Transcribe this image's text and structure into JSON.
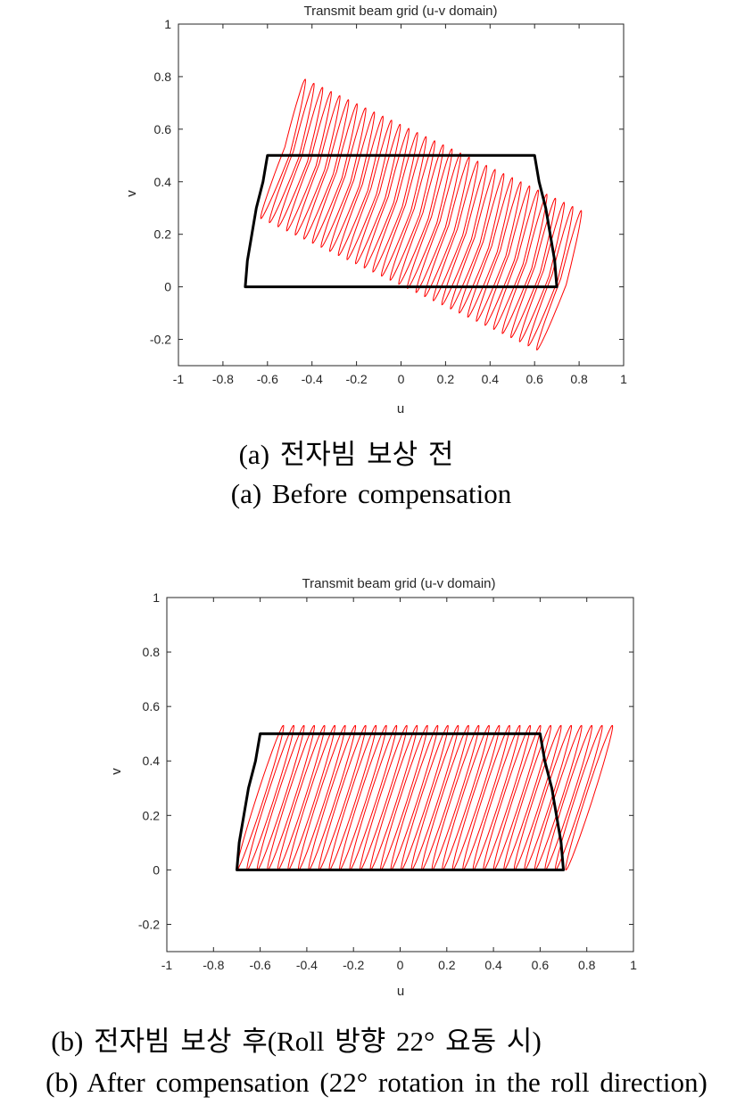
{
  "chart_data": [
    {
      "type": "line",
      "title": "Transmit beam grid (u-v domain)",
      "xlabel": "u",
      "ylabel": "v",
      "xlim": [
        -1,
        1
      ],
      "ylim": [
        -0.3,
        1
      ],
      "xticks": [
        "-1",
        "-0.8",
        "-0.6",
        "-0.4",
        "-0.2",
        "0",
        "0.2",
        "0.4",
        "0.6",
        "0.8",
        "1"
      ],
      "yticks": [
        "-0.2",
        "0",
        "0.2",
        "0.4",
        "0.6",
        "0.8",
        "1"
      ],
      "grid": false,
      "series": [
        {
          "role": "coverage_boundary",
          "color": "#000000",
          "points": [
            [
              -0.7,
              0
            ],
            [
              -0.69,
              0.1
            ],
            [
              -0.67,
              0.2
            ],
            [
              -0.65,
              0.3
            ],
            [
              -0.62,
              0.4
            ],
            [
              -0.6,
              0.5
            ],
            [
              0.6,
              0.5
            ],
            [
              0.62,
              0.4
            ],
            [
              0.65,
              0.3
            ],
            [
              0.67,
              0.2
            ],
            [
              0.69,
              0.1
            ],
            [
              0.7,
              0
            ]
          ]
        },
        {
          "role": "beam_grid",
          "color": "#ff0000",
          "beam_count": 33,
          "first_beam_center": [
            -0.51,
            0.52
          ],
          "last_beam_center": [
            0.73,
            0.02
          ],
          "beam_top_offset": [
            0.08,
            0.27
          ],
          "beam_bottom_offset": [
            -0.12,
            -0.26
          ]
        }
      ]
    },
    {
      "type": "line",
      "title": "Transmit beam grid (u-v domain)",
      "xlabel": "u",
      "ylabel": "v",
      "xlim": [
        -1,
        1
      ],
      "ylim": [
        -0.3,
        1
      ],
      "xticks": [
        "-1",
        "-0.8",
        "-0.6",
        "-0.4",
        "-0.2",
        "0",
        "0.2",
        "0.4",
        "0.6",
        "0.8",
        "1"
      ],
      "yticks": [
        "-0.2",
        "0",
        "0.2",
        "0.4",
        "0.6",
        "0.8",
        "1"
      ],
      "grid": false,
      "series": [
        {
          "role": "coverage_boundary",
          "color": "#000000",
          "points": [
            [
              -0.7,
              0
            ],
            [
              -0.69,
              0.1
            ],
            [
              -0.67,
              0.2
            ],
            [
              -0.65,
              0.3
            ],
            [
              -0.62,
              0.4
            ],
            [
              -0.6,
              0.5
            ],
            [
              0.6,
              0.5
            ],
            [
              0.62,
              0.4
            ],
            [
              0.65,
              0.3
            ],
            [
              0.67,
              0.2
            ],
            [
              0.69,
              0.1
            ],
            [
              0.7,
              0
            ]
          ]
        },
        {
          "role": "beam_grid",
          "color": "#ff0000",
          "beam_count": 33,
          "first_beam_center": [
            -0.6,
            0.265
          ],
          "last_beam_center": [
            0.81,
            0.265
          ],
          "beam_top_offset": [
            0.1,
            0.265
          ],
          "beam_bottom_offset": [
            -0.1,
            -0.265
          ]
        }
      ]
    }
  ],
  "captions": {
    "a_korean": "(a) 전자빔 보상 전",
    "a_english": "(a) Before compensation",
    "b_korean": "(b) 전자빔 보상 후(Roll 방향 22° 요동 시)",
    "b_english": "(b) After compensation (22° rotation in the roll direction)"
  }
}
